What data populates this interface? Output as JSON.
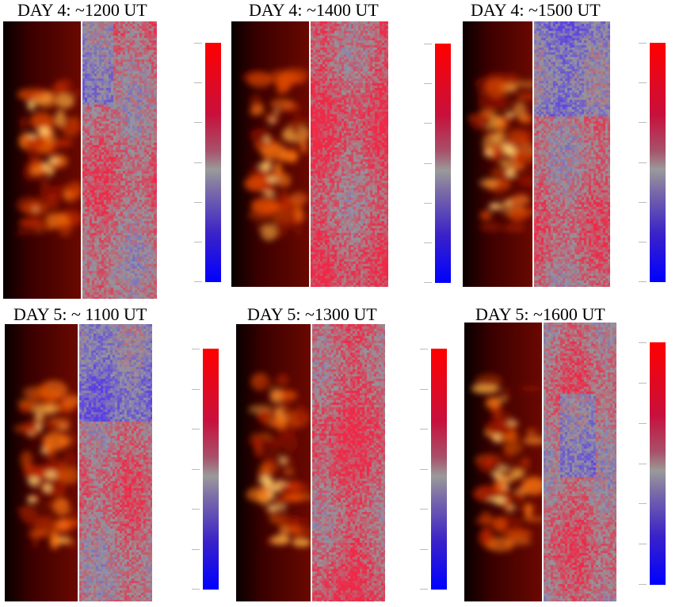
{
  "panels": [
    {
      "id": "d4-1200",
      "title": "DAY 4: ~1200 UT",
      "velocity_tone": "mixed-red-blue"
    },
    {
      "id": "d4-1400",
      "title": "DAY 4: ~1400 UT",
      "velocity_tone": "red-dominant"
    },
    {
      "id": "d4-1500",
      "title": "DAY 4: ~1500 UT",
      "velocity_tone": "mixed-blue-top"
    },
    {
      "id": "d5-1100",
      "title": "DAY 5: ~ 1100 UT",
      "velocity_tone": "mixed-blue-top"
    },
    {
      "id": "d5-1300",
      "title": "DAY 5: ~1300 UT",
      "velocity_tone": "red-dominant"
    },
    {
      "id": "d5-1600",
      "title": "DAY 5: ~1600 UT",
      "velocity_tone": "mixed-blue-center"
    }
  ],
  "colormaps": {
    "intensity": [
      "#000000",
      "#5a0000",
      "#b01a00",
      "#ff6a00",
      "#ffd070"
    ],
    "velocity": [
      "#0000ff",
      "#9a9a9a",
      "#ff0000"
    ]
  }
}
